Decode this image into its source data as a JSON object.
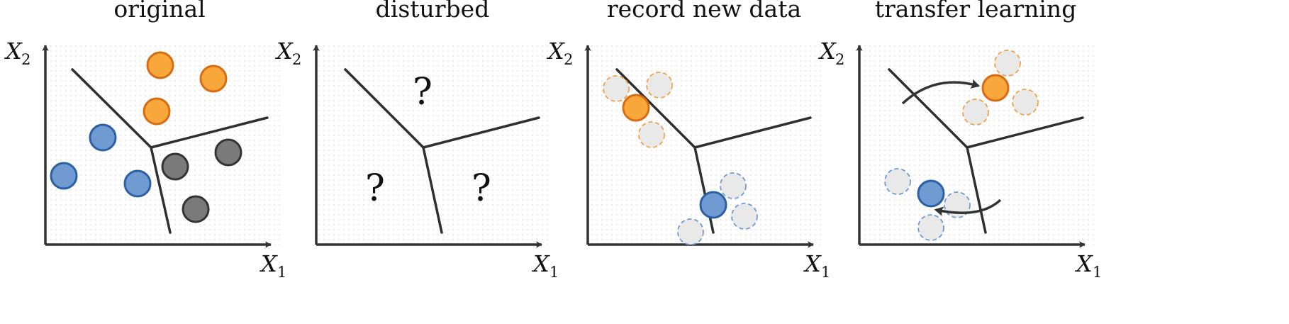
{
  "colors": {
    "orange": "#f8a73a",
    "orange_edge": "#d96c12",
    "blue": "#6f9bd2",
    "blue_edge": "#2b5fa6",
    "gray": "#7a7a7a",
    "gray_edge": "#333333",
    "ghost": "#e9e9e9",
    "boundary": "#2f2f2f",
    "axis": "#333333"
  },
  "axes": {
    "x_symbol": "X",
    "x_sub": "1",
    "y_symbol": "X",
    "y_sub": "2"
  },
  "panels": [
    {
      "title": "original",
      "question_marks": []
    },
    {
      "title": "disturbed",
      "question_marks": [
        "?",
        "?",
        "?"
      ]
    },
    {
      "title": "record new data",
      "question_marks": []
    },
    {
      "title": "transfer learning",
      "question_marks": []
    }
  ]
}
